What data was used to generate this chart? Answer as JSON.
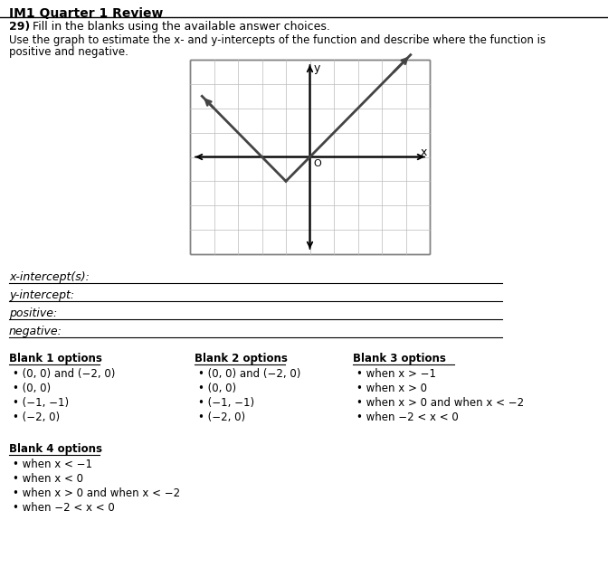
{
  "title": "IM1 Quarter 1 Review",
  "question_number": "29)",
  "question_text": "Fill in the blanks using the available answer choices.",
  "subtext1": "Use the graph to estimate the x- and y-intercepts of the function and describe where the function is",
  "subtext2": "positive and negative.",
  "fill_in_labels": [
    "x-intercept(s):",
    "y-intercept:",
    "positive:",
    "negative:"
  ],
  "blank1_title": "Blank 1 options",
  "blank1_options": [
    "(0, 0) and (−2, 0)",
    "(0, 0)",
    "(−1, −1)",
    "(−2, 0)"
  ],
  "blank2_title": "Blank 2 options",
  "blank2_options": [
    "(0, 0) and (−2, 0)",
    "(0, 0)",
    "(−1, −1)",
    "(−2, 0)"
  ],
  "blank3_title": "Blank 3 options",
  "blank3_options": [
    "when x > −1",
    "when x > 0",
    "when x > 0 and when x < −2",
    "when −2 < x < 0"
  ],
  "blank4_title": "Blank 4 options",
  "blank4_options": [
    "when x < −1",
    "when x < 0",
    "when x > 0 and when x < −2",
    "when −2 < x < 0"
  ],
  "graph_xlim": [
    -5,
    5
  ],
  "graph_ylim": [
    -4,
    4
  ],
  "vertex": [
    -1,
    -1
  ],
  "line_color": "#444444",
  "grid_color": "#bbbbbb",
  "page_bg": "#c8c8c8"
}
